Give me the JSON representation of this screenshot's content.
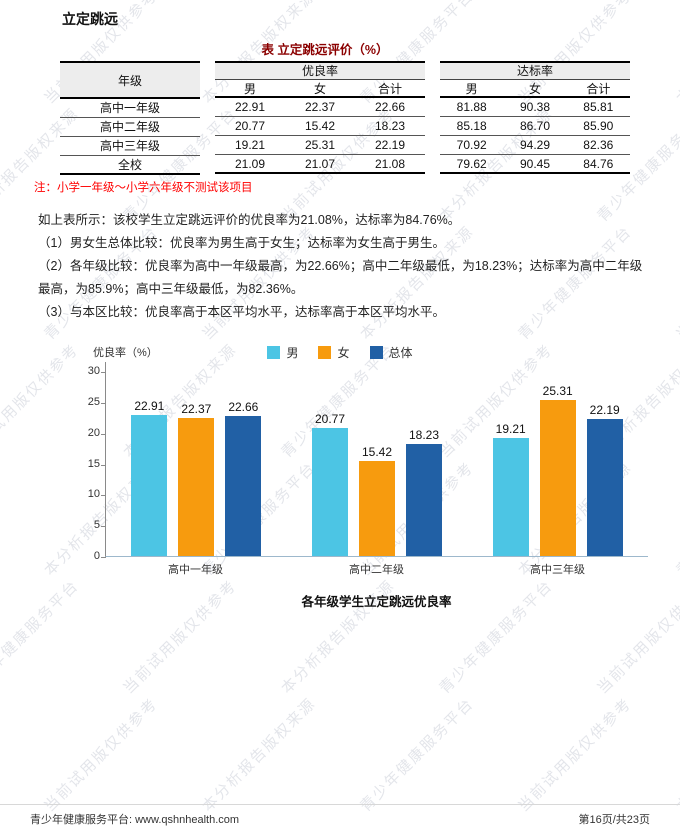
{
  "page": {
    "title": "立定跳远",
    "footer_left": "青少年健康服务平台: www.qshnhealth.com",
    "footer_right": "第16页/共23页"
  },
  "table": {
    "caption": "表 立定跳远评价（%）",
    "grade_header": "年级",
    "groups": [
      {
        "label": "优良率",
        "sub": [
          "男",
          "女",
          "合计"
        ]
      },
      {
        "label": "达标率",
        "sub": [
          "男",
          "女",
          "合计"
        ]
      }
    ],
    "rows": [
      {
        "grade": "高中一年级",
        "youliang": [
          "22.91",
          "22.37",
          "22.66"
        ],
        "dabiao": [
          "81.88",
          "90.38",
          "85.81"
        ]
      },
      {
        "grade": "高中二年级",
        "youliang": [
          "20.77",
          "15.42",
          "18.23"
        ],
        "dabiao": [
          "85.18",
          "86.70",
          "85.90"
        ]
      },
      {
        "grade": "高中三年级",
        "youliang": [
          "19.21",
          "25.31",
          "22.19"
        ],
        "dabiao": [
          "70.92",
          "94.29",
          "82.36"
        ]
      },
      {
        "grade": "全校",
        "youliang": [
          "21.09",
          "21.07",
          "21.08"
        ],
        "dabiao": [
          "79.62",
          "90.45",
          "84.76"
        ]
      }
    ],
    "note": "注：小学一年级～小学六年级不测试该项目"
  },
  "analysis": {
    "intro": "如上表所示：该校学生立定跳远评价的优良率为21.08%，达标率为84.76%。",
    "points": [
      "（1）男女生总体比较：优良率为男生高于女生；达标率为女生高于男生。",
      "（2）各年级比较：优良率为高中一年级最高，为22.66%；高中二年级最低，为18.23%；达标率为高中二年级最高，为85.9%；高中三年级最低，为82.36%。",
      "（3）与本区比较：优良率高于本区平均水平，达标率高于本区平均水平。"
    ]
  },
  "chart_data": {
    "type": "bar",
    "title": "各年级学生立定跳远优良率",
    "ylabel": "优良率（%）",
    "categories": [
      "高中一年级",
      "高中二年级",
      "高中三年级"
    ],
    "series": [
      {
        "name": "男",
        "color": "#4cc5e4",
        "values": [
          22.91,
          20.77,
          19.21
        ]
      },
      {
        "name": "女",
        "color": "#f79b0e",
        "values": [
          22.37,
          15.42,
          25.31
        ]
      },
      {
        "name": "总体",
        "color": "#2160a5",
        "values": [
          22.66,
          18.23,
          22.19
        ]
      }
    ],
    "ylim": [
      0,
      30
    ],
    "yticks": [
      0,
      5,
      10,
      15,
      20,
      25,
      30
    ],
    "grid": false,
    "legend_position": "top"
  },
  "watermark": {
    "phrases": [
      "青少年健康服务平台",
      "当前试用版仅供参考",
      "本分析报告版权来源"
    ]
  },
  "colors": {
    "table_caption_red": "#8b0000",
    "note_red": "#ff0000",
    "header_bg": "#ededed",
    "x_axis": "#9db8cc",
    "y_axis": "#8a8a8a"
  }
}
